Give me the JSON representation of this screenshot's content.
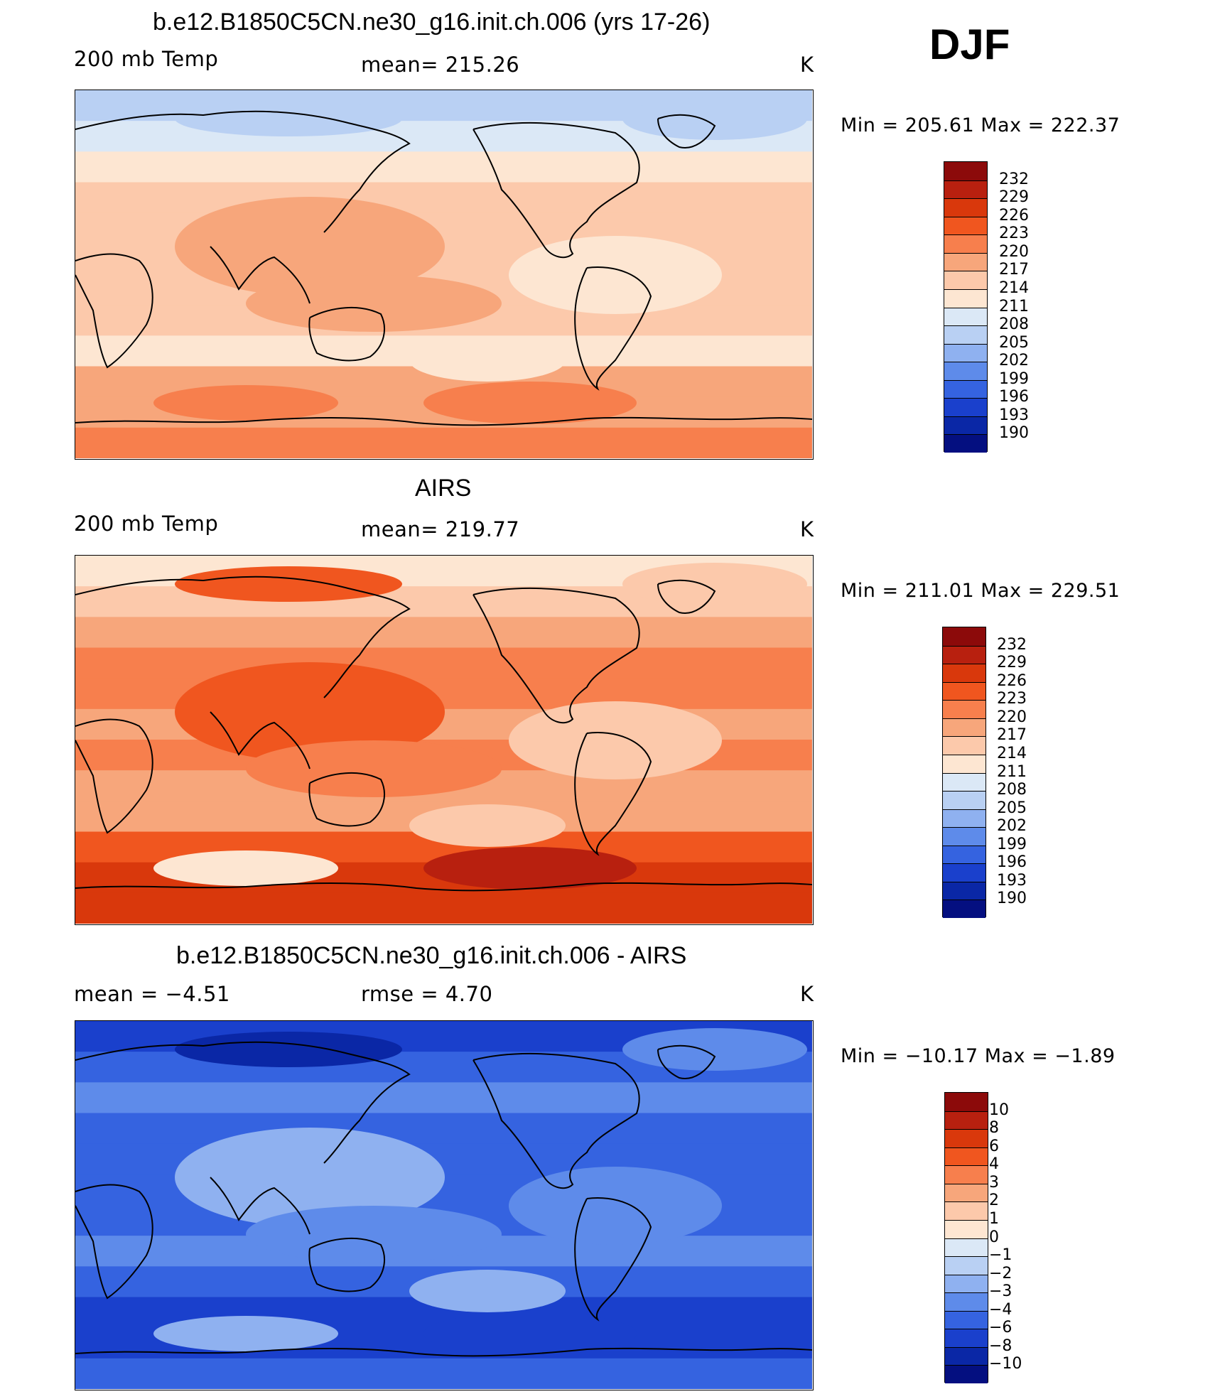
{
  "season": "DJF",
  "panels": [
    {
      "title": "b.e12.B1850C5CN.ne30_g16.init.ch.006 (yrs 17-26)",
      "left_label": "200 mb Temp",
      "center_label": "mean= 215.26",
      "units": "K",
      "minmax": "Min  =  205.61  Max  =  222.37",
      "colorbar": {
        "labels": [
          "232",
          "229",
          "226",
          "223",
          "220",
          "217",
          "214",
          "211",
          "208",
          "205",
          "202",
          "199",
          "196",
          "193",
          "190"
        ],
        "colors": [
          "#8c0a0a",
          "#b8200f",
          "#d9380c",
          "#f0561f",
          "#f77f4d",
          "#f7a67b",
          "#fcc9ab",
          "#fde6d2",
          "#dbe8f6",
          "#b9d0f3",
          "#8fb1f0",
          "#5e8bea",
          "#3563e0",
          "#1a40cc",
          "#0a27a6",
          "#040f80"
        ]
      },
      "map": {
        "bands": [
          {
            "c": "#b9d0f3"
          },
          {
            "c": "#dbe8f6"
          },
          {
            "c": "#fde6d2"
          },
          {
            "c": "#fcc9ab"
          },
          {
            "c": "#fcc9ab"
          },
          {
            "c": "#fcc9ab"
          },
          {
            "c": "#fcc9ab"
          },
          {
            "c": "#fcc9ab"
          },
          {
            "c": "#fde6d2"
          },
          {
            "c": "#f7a67b"
          },
          {
            "c": "#f7a67b"
          },
          {
            "c": "#f77f4d"
          }
        ],
        "blobs": [
          {
            "c": "#f7a67b"
          },
          {
            "c": "#fde6d2"
          },
          {
            "c": "#fde6d2"
          },
          {
            "c": "#f7a67b"
          },
          {
            "c": "#f77f4d"
          },
          {
            "c": "#f77f4d"
          },
          {
            "c": "#b9d0f3"
          },
          {
            "c": "#b9d0f3"
          }
        ]
      }
    },
    {
      "title": "AIRS",
      "left_label": "200 mb Temp",
      "center_label": "mean= 219.77",
      "units": "K",
      "minmax": "Min  =  211.01  Max  =  229.51",
      "colorbar": {
        "labels": [
          "232",
          "229",
          "226",
          "223",
          "220",
          "217",
          "214",
          "211",
          "208",
          "205",
          "202",
          "199",
          "196",
          "193",
          "190"
        ],
        "colors": [
          "#8c0a0a",
          "#b8200f",
          "#d9380c",
          "#f0561f",
          "#f77f4d",
          "#f7a67b",
          "#fcc9ab",
          "#fde6d2",
          "#dbe8f6",
          "#b9d0f3",
          "#8fb1f0",
          "#5e8bea",
          "#3563e0",
          "#1a40cc",
          "#0a27a6",
          "#040f80"
        ]
      },
      "map": {
        "bands": [
          {
            "c": "#fde6d2"
          },
          {
            "c": "#fcc9ab"
          },
          {
            "c": "#f7a67b"
          },
          {
            "c": "#f77f4d"
          },
          {
            "c": "#f77f4d"
          },
          {
            "c": "#f7a67b"
          },
          {
            "c": "#f77f4d"
          },
          {
            "c": "#f7a67b"
          },
          {
            "c": "#f7a67b"
          },
          {
            "c": "#f0561f"
          },
          {
            "c": "#d9380c"
          },
          {
            "c": "#d9380c"
          }
        ],
        "blobs": [
          {
            "c": "#f0561f"
          },
          {
            "c": "#fcc9ab"
          },
          {
            "c": "#fcc9ab"
          },
          {
            "c": "#f77f4d"
          },
          {
            "c": "#b8200f"
          },
          {
            "c": "#fde6d2"
          },
          {
            "c": "#fcc9ab"
          },
          {
            "c": "#f0561f"
          }
        ]
      }
    },
    {
      "title": "b.e12.B1850C5CN.ne30_g16.init.ch.006 - AIRS",
      "left_label": "mean  =    −4.51",
      "center_label": "rmse  =     4.70",
      "units": "K",
      "minmax": "Min  =  −10.17  Max  =   −1.89",
      "colorbar": {
        "labels": [
          "10",
          "8",
          "6",
          "4",
          "3",
          "2",
          "1",
          "0",
          "−1",
          "−2",
          "−3",
          "−4",
          "−6",
          "−8",
          "−10"
        ],
        "colors": [
          "#8c0a0a",
          "#b8200f",
          "#d9380c",
          "#f0561f",
          "#f77f4d",
          "#f7a67b",
          "#fcc9ab",
          "#fde6d2",
          "#dbe8f6",
          "#b9d0f3",
          "#8fb1f0",
          "#5e8bea",
          "#3563e0",
          "#1a40cc",
          "#0a27a6",
          "#040f80"
        ]
      },
      "map": {
        "bands": [
          {
            "c": "#1a40cc"
          },
          {
            "c": "#3563e0"
          },
          {
            "c": "#5e8bea"
          },
          {
            "c": "#3563e0"
          },
          {
            "c": "#3563e0"
          },
          {
            "c": "#3563e0"
          },
          {
            "c": "#3563e0"
          },
          {
            "c": "#5e8bea"
          },
          {
            "c": "#3563e0"
          },
          {
            "c": "#1a40cc"
          },
          {
            "c": "#1a40cc"
          },
          {
            "c": "#3563e0"
          }
        ],
        "blobs": [
          {
            "c": "#8fb1f0"
          },
          {
            "c": "#5e8bea"
          },
          {
            "c": "#8fb1f0"
          },
          {
            "c": "#5e8bea"
          },
          {
            "c": "#1a40cc"
          },
          {
            "c": "#8fb1f0"
          },
          {
            "c": "#5e8bea"
          },
          {
            "c": "#0a27a6"
          }
        ]
      }
    }
  ]
}
